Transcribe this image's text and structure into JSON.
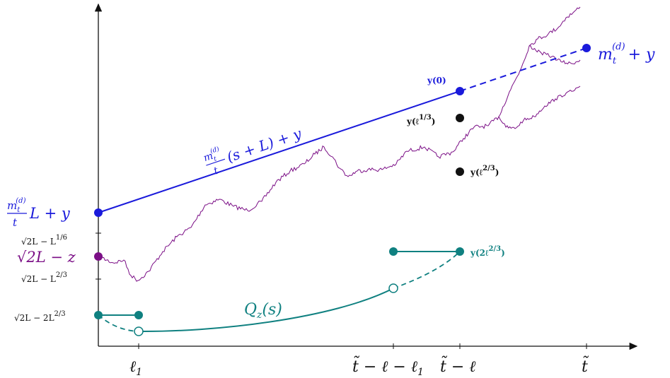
{
  "colors": {
    "blue": "#1a1adb",
    "purple": "#7b0f86",
    "teal": "#0f8080",
    "black": "#111111"
  },
  "x_axis": {
    "ticks": [
      "ℓ",
      "t̃ − ℓ − ℓ",
      "t̃ − ℓ",
      "t̃"
    ],
    "tick_subscripts": [
      "1",
      "1",
      "",
      ""
    ]
  },
  "left_labels": {
    "blue_label": "L + y",
    "blue_frac_num": "m",
    "blue_frac_num_sub": "t",
    "blue_frac_num_sup": "(d)",
    "blue_frac_den": "t",
    "sqrt2_minus_L16": "√2L − L",
    "sqrt2_minus_L16_exp": "1/6",
    "purple_label": "√2L − z",
    "sqrt2_minus_L23": "√2L − L",
    "sqrt2_minus_L23_exp": "2/3",
    "sqrt2_minus_2L23": "√2L − 2L",
    "sqrt2_minus_2L23_exp": "2/3"
  },
  "annotations": {
    "line_frac_num": "m",
    "line_frac_sub": "t",
    "line_frac_sup": "(d)",
    "line_frac_den": "t",
    "line_label_rest": "(s + L) + y",
    "end_label_m": "m",
    "end_label_sub": "t",
    "end_label_sup": "(d)",
    "end_label_rest": "+ y",
    "y0": "y(0)",
    "y_l13_base": "y(ℓ",
    "y_l13_exp": "1/3",
    "y_l13_close": ")",
    "y_l23_base": "y(ℓ",
    "y_l23_exp": "2/3",
    "y_l23_close": ")",
    "y_2l23_base": "y(2ℓ",
    "y_2l23_exp": "2/3",
    "y_2l23_close": ")",
    "Qz": "Q",
    "Qz_sub": "z",
    "Qz_arg": "(s)"
  }
}
